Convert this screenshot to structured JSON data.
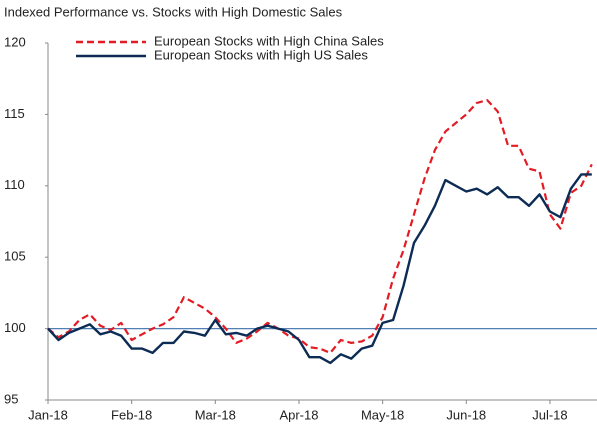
{
  "chart_data": {
    "type": "line",
    "title": "Indexed Performance vs. Stocks with High Domestic Sales",
    "categories": [
      "Jan-18",
      null,
      null,
      null,
      null,
      null,
      null,
      null,
      "Feb-18",
      null,
      null,
      null,
      null,
      null,
      null,
      null,
      "Mar-18",
      null,
      null,
      null,
      null,
      null,
      null,
      null,
      "Apr-18",
      null,
      null,
      null,
      null,
      null,
      null,
      null,
      "May-18",
      null,
      null,
      null,
      null,
      null,
      null,
      null,
      "Jun-18",
      null,
      null,
      null,
      null,
      null,
      null,
      null,
      "Jul-18",
      null,
      null,
      null,
      null
    ],
    "series": [
      {
        "name": "European Stocks with High China Sales",
        "color": "#e31b23",
        "dash": true,
        "values": [
          100,
          99.4,
          99.8,
          100.6,
          101.0,
          100.2,
          99.9,
          100.4,
          99.2,
          99.6,
          100.0,
          100.3,
          100.8,
          102.2,
          101.8,
          101.4,
          100.8,
          100.0,
          99.0,
          99.3,
          99.8,
          100.4,
          100.0,
          99.5,
          99.3,
          98.7,
          98.6,
          98.3,
          99.2,
          99.0,
          99.1,
          99.5,
          100.8,
          103.5,
          105.5,
          108.0,
          110.5,
          112.5,
          113.8,
          114.4,
          115.0,
          115.8,
          116.0,
          115.2,
          112.8,
          112.8,
          111.2,
          111.0,
          108.0,
          107.0,
          109.5,
          110.0,
          111.5
        ]
      },
      {
        "name": "European Stocks with High US Sales",
        "color": "#0c2c55",
        "dash": false,
        "values": [
          100,
          99.2,
          99.7,
          100.0,
          100.3,
          99.6,
          99.8,
          99.5,
          98.6,
          98.6,
          98.3,
          99.0,
          99.0,
          99.8,
          99.7,
          99.5,
          100.6,
          99.6,
          99.7,
          99.5,
          100.0,
          100.2,
          100.0,
          99.8,
          99.2,
          98.0,
          98.0,
          97.6,
          98.2,
          97.9,
          98.6,
          98.8,
          100.4,
          100.6,
          103.0,
          106.0,
          107.2,
          108.6,
          110.4,
          110.0,
          109.6,
          109.8,
          109.4,
          109.9,
          109.2,
          109.2,
          108.6,
          109.4,
          108.2,
          107.8,
          109.8,
          110.8,
          110.8
        ]
      }
    ],
    "ylim": [
      95,
      120
    ],
    "yticks": [
      95,
      100,
      105,
      110,
      115,
      120
    ],
    "reference_line": 100,
    "reference_color": "#4f7fb5"
  }
}
